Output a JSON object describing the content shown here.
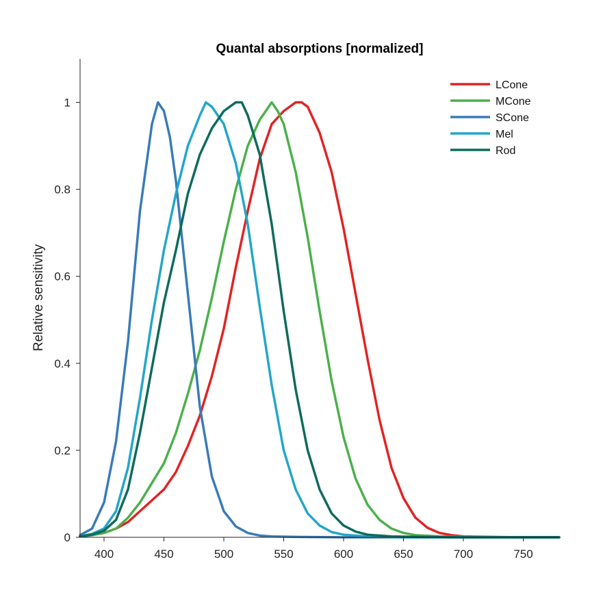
{
  "chart_data": {
    "type": "line",
    "title": "Quantal absorptions [normalized]",
    "xlabel": "",
    "ylabel": "Relative sensitivity",
    "xlim": [
      380,
      780
    ],
    "ylim": [
      0,
      1.1
    ],
    "xticks": [
      400,
      450,
      500,
      550,
      600,
      650,
      700,
      750
    ],
    "yticks": [
      0,
      0.2,
      0.4,
      0.6,
      0.8,
      1
    ],
    "ytick_labels": [
      "0",
      "0.2",
      "0.4",
      "0.6",
      "0.8",
      "1"
    ],
    "legend_position": "top-right",
    "grid": false,
    "series": [
      {
        "name": "LCone",
        "color": "#e02424",
        "points": [
          [
            380,
            0.002
          ],
          [
            390,
            0.005
          ],
          [
            400,
            0.01
          ],
          [
            410,
            0.02
          ],
          [
            420,
            0.035
          ],
          [
            430,
            0.06
          ],
          [
            440,
            0.085
          ],
          [
            450,
            0.11
          ],
          [
            460,
            0.15
          ],
          [
            470,
            0.21
          ],
          [
            480,
            0.28
          ],
          [
            490,
            0.37
          ],
          [
            500,
            0.48
          ],
          [
            510,
            0.62
          ],
          [
            520,
            0.75
          ],
          [
            530,
            0.87
          ],
          [
            540,
            0.95
          ],
          [
            550,
            0.98
          ],
          [
            560,
            1.0
          ],
          [
            565,
            1.0
          ],
          [
            570,
            0.99
          ],
          [
            580,
            0.93
          ],
          [
            590,
            0.84
          ],
          [
            600,
            0.71
          ],
          [
            610,
            0.56
          ],
          [
            620,
            0.41
          ],
          [
            630,
            0.27
          ],
          [
            640,
            0.16
          ],
          [
            650,
            0.09
          ],
          [
            660,
            0.045
          ],
          [
            670,
            0.022
          ],
          [
            680,
            0.01
          ],
          [
            690,
            0.005
          ],
          [
            700,
            0.002
          ],
          [
            720,
            0.001
          ],
          [
            750,
            0.0
          ],
          [
            780,
            0.0
          ]
        ]
      },
      {
        "name": "MCone",
        "color": "#4cb04c",
        "points": [
          [
            380,
            0.002
          ],
          [
            390,
            0.005
          ],
          [
            400,
            0.01
          ],
          [
            410,
            0.02
          ],
          [
            420,
            0.045
          ],
          [
            430,
            0.08
          ],
          [
            440,
            0.125
          ],
          [
            450,
            0.17
          ],
          [
            460,
            0.24
          ],
          [
            470,
            0.33
          ],
          [
            480,
            0.43
          ],
          [
            490,
            0.55
          ],
          [
            500,
            0.68
          ],
          [
            510,
            0.8
          ],
          [
            520,
            0.9
          ],
          [
            530,
            0.96
          ],
          [
            540,
            1.0
          ],
          [
            545,
            0.98
          ],
          [
            550,
            0.95
          ],
          [
            560,
            0.84
          ],
          [
            570,
            0.69
          ],
          [
            580,
            0.52
          ],
          [
            590,
            0.36
          ],
          [
            600,
            0.23
          ],
          [
            610,
            0.135
          ],
          [
            620,
            0.075
          ],
          [
            630,
            0.04
          ],
          [
            640,
            0.02
          ],
          [
            650,
            0.01
          ],
          [
            660,
            0.005
          ],
          [
            680,
            0.002
          ],
          [
            700,
            0.001
          ],
          [
            750,
            0.0
          ],
          [
            780,
            0.0
          ]
        ]
      },
      {
        "name": "SCone",
        "color": "#3a7bb8",
        "points": [
          [
            380,
            0.005
          ],
          [
            390,
            0.02
          ],
          [
            400,
            0.08
          ],
          [
            410,
            0.22
          ],
          [
            420,
            0.45
          ],
          [
            430,
            0.75
          ],
          [
            440,
            0.95
          ],
          [
            445,
            1.0
          ],
          [
            450,
            0.98
          ],
          [
            455,
            0.92
          ],
          [
            460,
            0.82
          ],
          [
            470,
            0.56
          ],
          [
            480,
            0.3
          ],
          [
            490,
            0.14
          ],
          [
            500,
            0.06
          ],
          [
            510,
            0.025
          ],
          [
            520,
            0.01
          ],
          [
            530,
            0.004
          ],
          [
            540,
            0.002
          ],
          [
            560,
            0.001
          ],
          [
            600,
            0.0
          ],
          [
            780,
            0.0
          ]
        ]
      },
      {
        "name": "Mel",
        "color": "#23a6c9",
        "points": [
          [
            380,
            0.002
          ],
          [
            390,
            0.008
          ],
          [
            400,
            0.02
          ],
          [
            410,
            0.06
          ],
          [
            420,
            0.16
          ],
          [
            430,
            0.32
          ],
          [
            440,
            0.5
          ],
          [
            450,
            0.66
          ],
          [
            460,
            0.79
          ],
          [
            470,
            0.9
          ],
          [
            480,
            0.97
          ],
          [
            485,
            1.0
          ],
          [
            490,
            0.99
          ],
          [
            500,
            0.95
          ],
          [
            510,
            0.86
          ],
          [
            520,
            0.72
          ],
          [
            530,
            0.53
          ],
          [
            540,
            0.35
          ],
          [
            550,
            0.2
          ],
          [
            560,
            0.11
          ],
          [
            570,
            0.055
          ],
          [
            580,
            0.027
          ],
          [
            590,
            0.012
          ],
          [
            600,
            0.006
          ],
          [
            620,
            0.002
          ],
          [
            650,
            0.0
          ],
          [
            780,
            0.0
          ]
        ]
      },
      {
        "name": "Rod",
        "color": "#0e6b5c",
        "points": [
          [
            380,
            0.002
          ],
          [
            390,
            0.006
          ],
          [
            400,
            0.015
          ],
          [
            410,
            0.04
          ],
          [
            420,
            0.11
          ],
          [
            430,
            0.24
          ],
          [
            440,
            0.39
          ],
          [
            450,
            0.54
          ],
          [
            460,
            0.66
          ],
          [
            470,
            0.79
          ],
          [
            480,
            0.88
          ],
          [
            490,
            0.94
          ],
          [
            500,
            0.98
          ],
          [
            510,
            1.0
          ],
          [
            515,
            1.0
          ],
          [
            520,
            0.97
          ],
          [
            530,
            0.88
          ],
          [
            540,
            0.72
          ],
          [
            550,
            0.52
          ],
          [
            560,
            0.34
          ],
          [
            570,
            0.2
          ],
          [
            580,
            0.11
          ],
          [
            590,
            0.055
          ],
          [
            600,
            0.027
          ],
          [
            610,
            0.013
          ],
          [
            620,
            0.006
          ],
          [
            640,
            0.002
          ],
          [
            660,
            0.001
          ],
          [
            700,
            0.0
          ],
          [
            780,
            0.0
          ]
        ]
      }
    ]
  }
}
